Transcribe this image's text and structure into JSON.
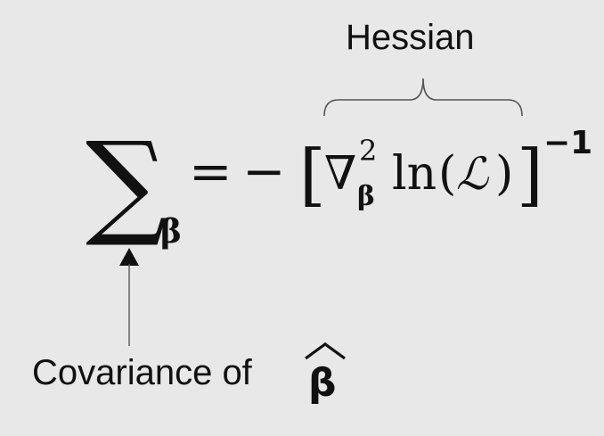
{
  "annotations": {
    "hessian": "Hessian",
    "covariance_text": "Covariance of "
  },
  "formula": {
    "sum_symbol": "∑",
    "subscript_beta": "β",
    "equals": "=",
    "minus": "−",
    "left_bracket": "[",
    "nabla": "∇",
    "nabla_superscript": "2",
    "nabla_subscript": "β",
    "ln": "ln",
    "open_paren": "(",
    "likelihood": "ℒ",
    "close_paren": ")",
    "right_bracket": "]",
    "exponent": "−1"
  },
  "beta_hat": {
    "symbol": "β",
    "hat": "^"
  },
  "colors": {
    "background": "#e8e8e8",
    "ink": "#111111",
    "line": "#555555"
  }
}
